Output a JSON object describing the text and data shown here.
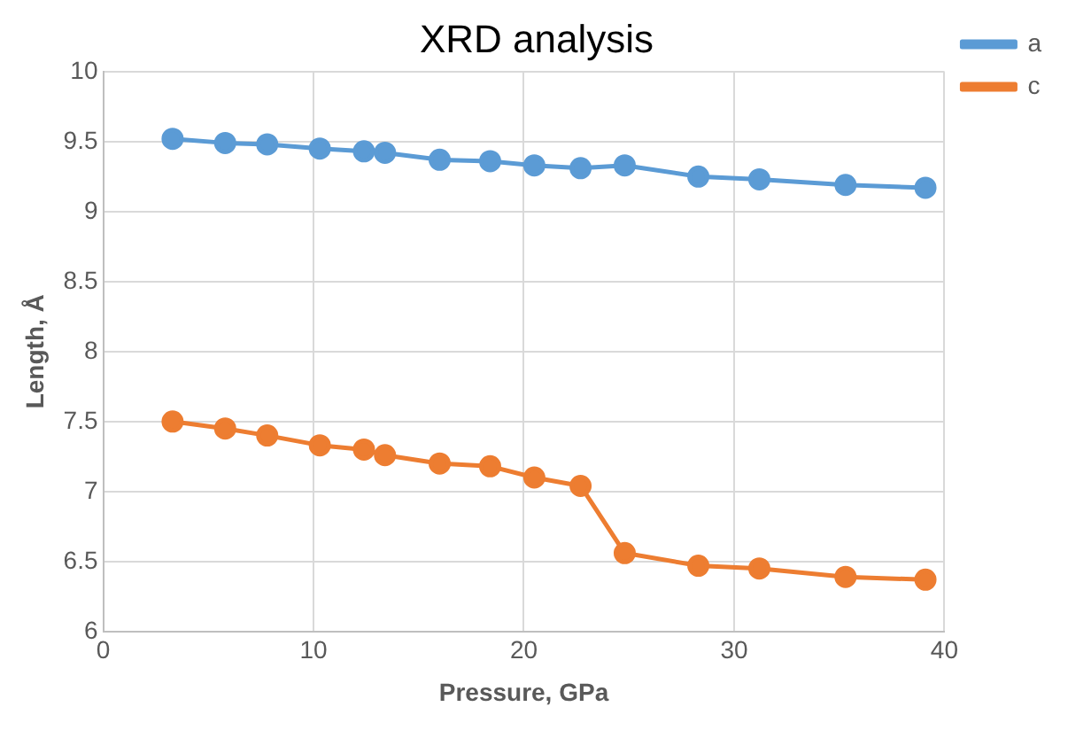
{
  "chart_data": {
    "type": "line",
    "title": "XRD analysis",
    "xlabel": "Pressure, GPa",
    "ylabel": "Length, Å",
    "x": [
      3.3,
      5.8,
      7.8,
      10.3,
      12.4,
      13.4,
      16.0,
      18.4,
      20.5,
      22.7,
      24.8,
      28.3,
      31.2,
      35.3,
      39.1
    ],
    "series": [
      {
        "name": "a",
        "color": "#5b9bd5",
        "values": [
          9.52,
          9.49,
          9.48,
          9.45,
          9.43,
          9.42,
          9.37,
          9.36,
          9.33,
          9.31,
          9.33,
          9.25,
          9.23,
          9.19,
          9.17
        ]
      },
      {
        "name": "c",
        "color": "#ed7d31",
        "values": [
          7.5,
          7.45,
          7.4,
          7.33,
          7.3,
          7.26,
          7.2,
          7.18,
          7.1,
          7.04,
          6.56,
          6.47,
          6.45,
          6.39,
          6.37
        ]
      }
    ],
    "xlim": [
      0,
      40
    ],
    "xticks": [
      0,
      10,
      20,
      30,
      40
    ],
    "ylim": [
      6,
      10
    ],
    "yticks": [
      6,
      6.5,
      7,
      7.5,
      8,
      8.5,
      9,
      9.5,
      10
    ],
    "grid": true,
    "legend": "top right",
    "marker": "circle",
    "line_style": "solid"
  }
}
